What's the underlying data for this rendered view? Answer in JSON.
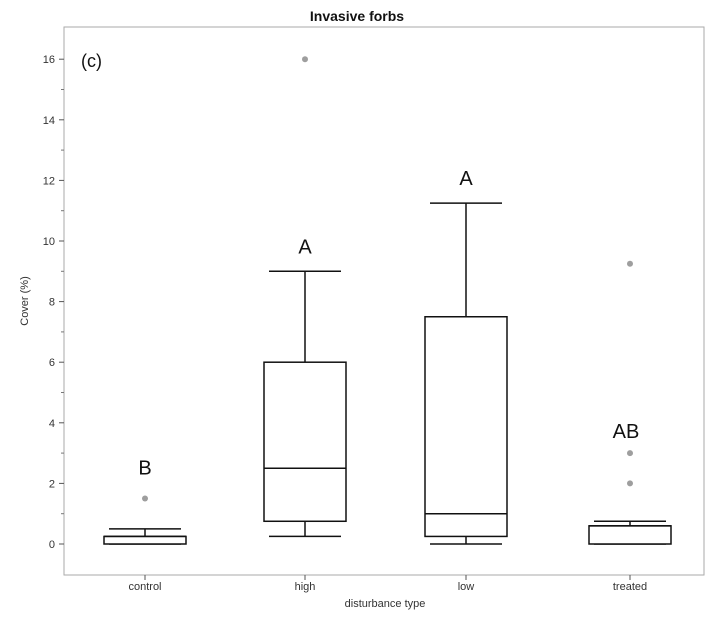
{
  "chart_data": {
    "type": "box",
    "title": "Invasive forbs",
    "panel_label": "(c)",
    "xlabel": "disturbance type",
    "ylabel": "Cover (%)",
    "ylim": [
      -1,
      17
    ],
    "yticks": [
      0,
      2,
      4,
      6,
      8,
      10,
      12,
      14,
      16
    ],
    "grid": false,
    "categories": [
      "control",
      "high",
      "low",
      "treated"
    ],
    "boxes": [
      {
        "category": "control",
        "whisker_low": 0,
        "q1": 0,
        "median": 0.25,
        "q3": 0.25,
        "whisker_high": 0.5,
        "outliers": [
          1.5
        ],
        "letter": "B"
      },
      {
        "category": "high",
        "whisker_low": 0.25,
        "q1": 0.75,
        "median": 2.5,
        "q3": 6.0,
        "whisker_high": 9.0,
        "outliers": [
          16.0
        ],
        "letter": "A"
      },
      {
        "category": "low",
        "whisker_low": 0,
        "q1": 0.25,
        "median": 1.0,
        "q3": 7.5,
        "whisker_high": 11.25,
        "outliers": [],
        "letter": "A"
      },
      {
        "category": "treated",
        "whisker_low": 0,
        "q1": 0,
        "median": 0.6,
        "q3": 0.6,
        "whisker_high": 0.75,
        "outliers": [
          2.0,
          3.0,
          9.25
        ],
        "letter": "AB"
      }
    ],
    "colors": {
      "box_stroke": "#111111",
      "outlier": "#9e9e9e",
      "frame": "#aaaaaa"
    }
  }
}
